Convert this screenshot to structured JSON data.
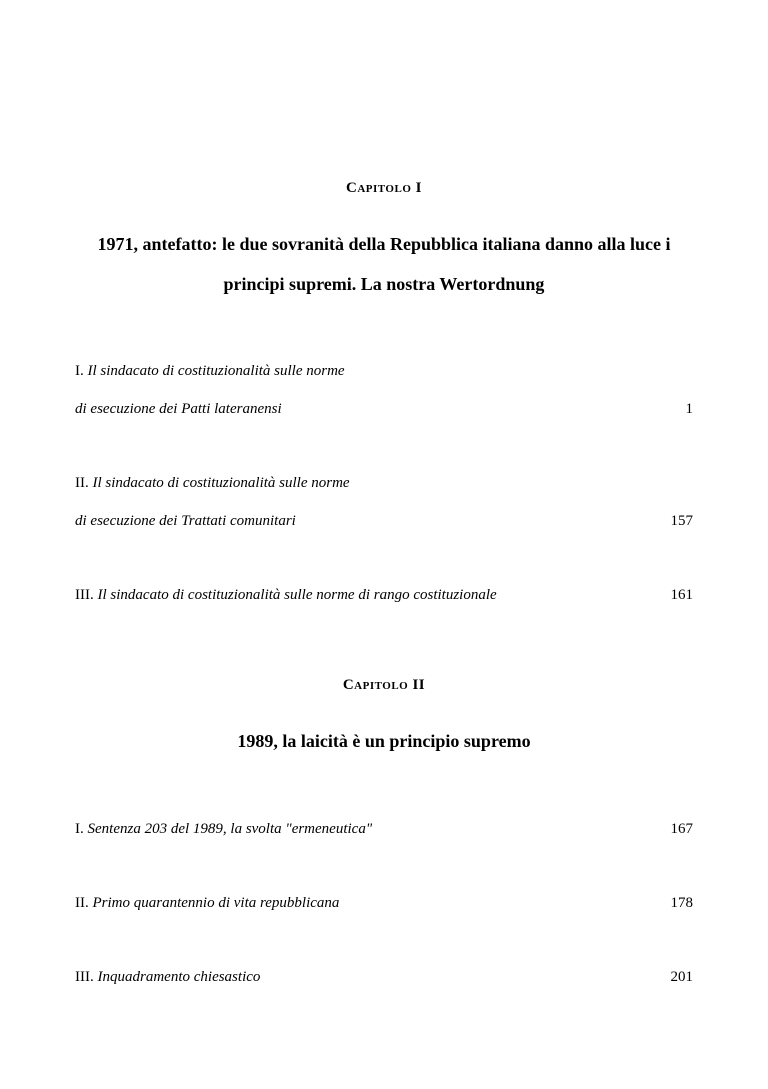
{
  "chapters": [
    {
      "label": "Capitolo I",
      "title": "1971, antefatto: le due sovranità della Repubblica italiana danno alla luce i principi supremi. La nostra Wertordnung",
      "entries": [
        {
          "numeral": "I.",
          "text_line1": "Il sindacato di costituzionalità sulle norme",
          "text_line2": "di esecuzione dei Patti lateranensi",
          "page": "1",
          "multiline": true
        },
        {
          "numeral": "II.",
          "text_line1": "Il sindacato di costituzionalità sulle norme",
          "text_line2": "di esecuzione dei Trattati comunitari",
          "page": "157",
          "multiline": true
        },
        {
          "numeral": "III.",
          "text_line1": "Il sindacato di costituzionalità sulle norme di rango costituzionale",
          "page": "161",
          "multiline": false
        }
      ]
    },
    {
      "label": "Capitolo II",
      "title": "1989, la laicità è un principio supremo",
      "entries": [
        {
          "numeral": "I.",
          "text_line1": "Sentenza 203 del 1989, la svolta \"ermeneutica\"",
          "page": "167",
          "multiline": false
        },
        {
          "numeral": "II.",
          "text_line1": "Primo quarantennio di vita repubblicana",
          "page": "178",
          "multiline": false
        },
        {
          "numeral": "III.",
          "text_line1": "Inquadramento chiesastico",
          "page": "201",
          "multiline": false
        }
      ]
    }
  ]
}
